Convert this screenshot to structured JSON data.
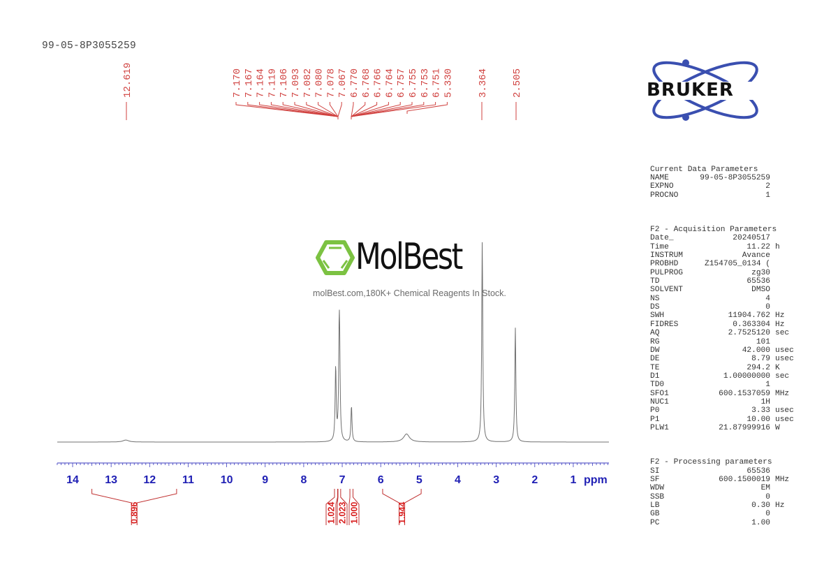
{
  "title": "99-05-8P3055259",
  "logo": {
    "brand": "BRUKER",
    "ring_color": "#3a4fb0"
  },
  "watermark": {
    "name": "MolBest",
    "tagline": "molBest.com,180K+ Chemical Reagents In Stock.",
    "icon": "benzene-ring-icon",
    "icon_color": "#7cc242"
  },
  "peak_labels": [
    "12.619",
    "7.170",
    "7.167",
    "7.164",
    "7.119",
    "7.106",
    "7.093",
    "7.082",
    "7.080",
    "7.078",
    "7.067",
    "6.770",
    "6.768",
    "6.766",
    "6.764",
    "6.757",
    "6.755",
    "6.753",
    "6.751",
    "5.330",
    "3.364",
    "2.505"
  ],
  "axis": {
    "ticks": [
      "14",
      "13",
      "12",
      "11",
      "10",
      "9",
      "8",
      "7",
      "6",
      "5",
      "4",
      "3",
      "2",
      "1"
    ],
    "unit": "ppm"
  },
  "integrals": [
    {
      "value": "0.896",
      "from": 13.5,
      "to": 11.3
    },
    {
      "value": "1.024",
      "from": 7.2,
      "to": 7.12
    },
    {
      "value": "2.023",
      "from": 7.11,
      "to": 7.04
    },
    {
      "value": "1.000",
      "from": 6.8,
      "to": 6.72
    },
    {
      "value": "1.944",
      "from": 5.95,
      "to": 4.95
    }
  ],
  "parameters": {
    "current": {
      "heading": "Current Data Parameters",
      "rows": [
        {
          "k": "NAME",
          "v": "99-05-8P3055259",
          "u": ""
        },
        {
          "k": "EXPNO",
          "v": "2",
          "u": ""
        },
        {
          "k": "PROCNO",
          "v": "1",
          "u": ""
        }
      ]
    },
    "acquisition": {
      "heading": "F2 - Acquisition Parameters",
      "rows": [
        {
          "k": "Date_",
          "v": "20240517",
          "u": ""
        },
        {
          "k": "Time",
          "v": "11.22",
          "u": "h"
        },
        {
          "k": "INSTRUM",
          "v": "Avance",
          "u": ""
        },
        {
          "k": "PROBHD",
          "v": "Z154705_0134 (",
          "u": ""
        },
        {
          "k": "PULPROG",
          "v": "zg30",
          "u": ""
        },
        {
          "k": "TD",
          "v": "65536",
          "u": ""
        },
        {
          "k": "SOLVENT",
          "v": "DMSO",
          "u": ""
        },
        {
          "k": "NS",
          "v": "4",
          "u": ""
        },
        {
          "k": "DS",
          "v": "0",
          "u": ""
        },
        {
          "k": "SWH",
          "v": "11904.762",
          "u": "Hz"
        },
        {
          "k": "FIDRES",
          "v": "0.363304",
          "u": "Hz"
        },
        {
          "k": "AQ",
          "v": "2.7525120",
          "u": "sec"
        },
        {
          "k": "RG",
          "v": "101",
          "u": ""
        },
        {
          "k": "DW",
          "v": "42.000",
          "u": "usec"
        },
        {
          "k": "DE",
          "v": "8.79",
          "u": "usec"
        },
        {
          "k": "TE",
          "v": "294.2",
          "u": "K"
        },
        {
          "k": "D1",
          "v": "1.00000000",
          "u": "sec"
        },
        {
          "k": "TD0",
          "v": "1",
          "u": ""
        },
        {
          "k": "SFO1",
          "v": "600.1537059",
          "u": "MHz"
        },
        {
          "k": "NUC1",
          "v": "1H",
          "u": ""
        },
        {
          "k": "P0",
          "v": "3.33",
          "u": "usec"
        },
        {
          "k": "P1",
          "v": "10.00",
          "u": "usec"
        },
        {
          "k": "PLW1",
          "v": "21.87999916",
          "u": "W"
        }
      ]
    },
    "processing": {
      "heading": "F2 - Processing parameters",
      "rows": [
        {
          "k": "SI",
          "v": "65536",
          "u": ""
        },
        {
          "k": "SF",
          "v": "600.1500019",
          "u": "MHz"
        },
        {
          "k": "WDW",
          "v": "EM",
          "u": ""
        },
        {
          "k": "SSB",
          "v": "0",
          "u": ""
        },
        {
          "k": "LB",
          "v": "0.30",
          "u": "Hz"
        },
        {
          "k": "GB",
          "v": "0",
          "u": ""
        },
        {
          "k": "PC",
          "v": "1.00",
          "u": ""
        }
      ]
    }
  },
  "chart_data": {
    "type": "line",
    "title": "99-05-8P3055259",
    "xlabel": "ppm",
    "ylabel": "",
    "xlim": [
      14.4,
      0.1
    ],
    "x_reversed": true,
    "grid": false,
    "x_ticks": [
      14,
      13,
      12,
      11,
      10,
      9,
      8,
      7,
      6,
      5,
      4,
      3,
      2,
      1
    ],
    "peaks": [
      {
        "ppm": 12.619,
        "rel_intensity": 0.01,
        "shape": "broad"
      },
      {
        "ppm": 7.17,
        "rel_intensity": 0.37
      },
      {
        "ppm": 7.08,
        "rel_intensity": 0.41
      },
      {
        "ppm": 7.067,
        "rel_intensity": 0.34
      },
      {
        "ppm": 6.76,
        "rel_intensity": 0.18
      },
      {
        "ppm": 5.33,
        "rel_intensity": 0.04,
        "shape": "broad"
      },
      {
        "ppm": 3.364,
        "rel_intensity": 1.0
      },
      {
        "ppm": 2.505,
        "rel_intensity": 0.57
      }
    ],
    "peak_labels_ppm": [
      12.619,
      7.17,
      7.167,
      7.164,
      7.119,
      7.106,
      7.093,
      7.082,
      7.08,
      7.078,
      7.067,
      6.77,
      6.768,
      6.766,
      6.764,
      6.757,
      6.755,
      6.753,
      6.751,
      5.33,
      3.364,
      2.505
    ],
    "integrals": [
      {
        "range": [
          13.5,
          11.3
        ],
        "value": 0.896
      },
      {
        "range": [
          7.2,
          7.12
        ],
        "value": 1.024
      },
      {
        "range": [
          7.11,
          7.04
        ],
        "value": 2.023
      },
      {
        "range": [
          6.8,
          6.72
        ],
        "value": 1.0
      },
      {
        "range": [
          5.95,
          4.95
        ],
        "value": 1.944
      }
    ],
    "solvent": "DMSO",
    "nucleus": "1H",
    "frequency_MHz": 600.15
  }
}
